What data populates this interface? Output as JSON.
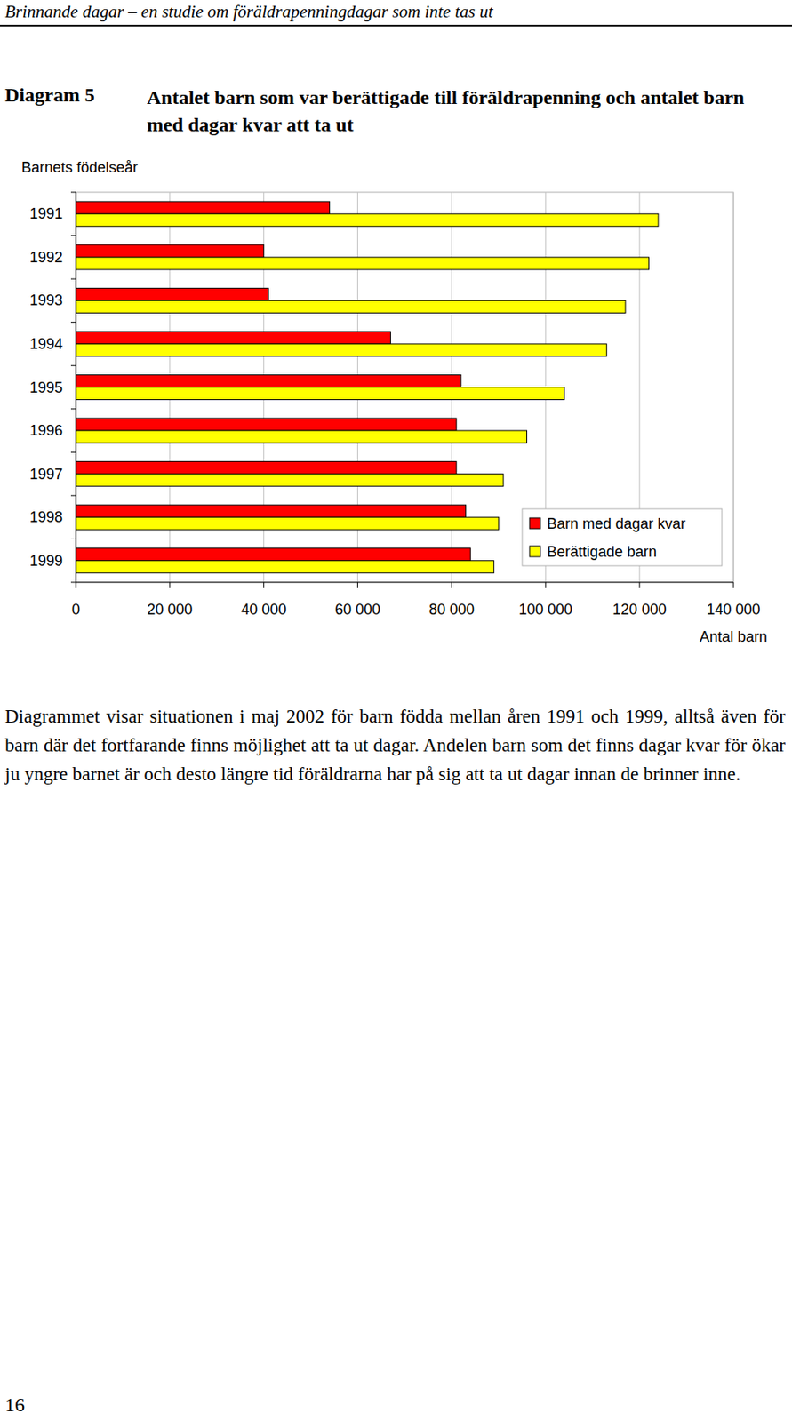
{
  "header": {
    "title": "Brinnande dagar – en studie om föräldrapenningdagar som inte tas ut"
  },
  "figure_label": "Diagram 5",
  "chart_data": {
    "type": "bar",
    "orientation": "horizontal",
    "title": "Antalet barn som var berättigade till föräldrapenning och antalet barn med dagar kvar att ta ut",
    "y_label": "Barnets födelseår",
    "x_label": "Antal barn",
    "categories": [
      "1991",
      "1992",
      "1993",
      "1994",
      "1995",
      "1996",
      "1997",
      "1998",
      "1999"
    ],
    "series": [
      {
        "name": "Barn med dagar kvar",
        "color": "#ff0000",
        "values": [
          54000,
          40000,
          41000,
          67000,
          82000,
          81000,
          81000,
          83000,
          84000
        ]
      },
      {
        "name": "Berättigade barn",
        "color": "#ffff00",
        "values": [
          124000,
          122000,
          117000,
          113000,
          104000,
          96000,
          91000,
          90000,
          89000
        ]
      }
    ],
    "xlim": [
      0,
      140000
    ],
    "xticks": [
      0,
      {
        "value": 20000,
        "label": "20 000"
      },
      {
        "value": 40000,
        "label": "40 000"
      },
      {
        "value": 60000,
        "label": "60 000"
      },
      {
        "value": 80000,
        "label": "80 000"
      },
      {
        "value": 100000,
        "label": "100 000"
      },
      {
        "value": 120000,
        "label": "120 000"
      },
      {
        "value": 140000,
        "label": "140 000"
      }
    ],
    "grid": true,
    "legend": "right"
  },
  "body_text": "Diagrammet visar situationen i maj 2002 för barn födda mellan åren 1991 och 1999, alltså även för barn där det fortfarande finns möjlighet att ta ut dagar. Andelen barn som det finns dagar kvar för ökar ju yngre barnet är och desto längre tid föräldrarna har på sig att ta ut dagar innan de brinner inne.",
  "page_number": "16"
}
